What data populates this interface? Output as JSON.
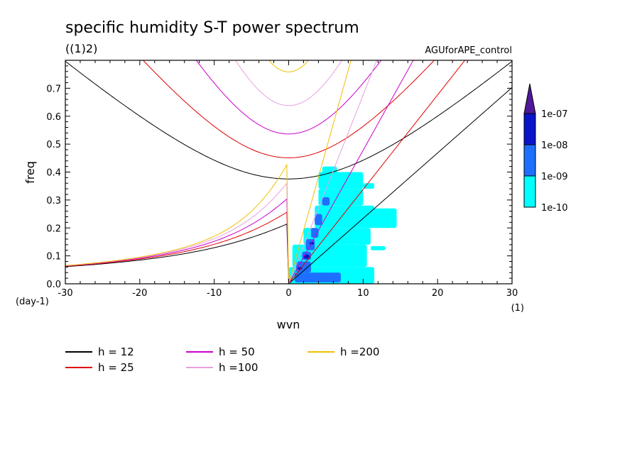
{
  "chart_data": {
    "type": "heatmap",
    "title": "specific humidity S-T power spectrum",
    "subtitle": "((1)2)",
    "run_label": "AGUforAPE_control",
    "xlabel": "wvn",
    "ylabel": "freq",
    "x_unit": "(1)",
    "y_unit": "(day-1)",
    "xlim": [
      -30,
      30
    ],
    "ylim": [
      0,
      0.8
    ],
    "xticks": [
      "-30",
      "-20",
      "-10",
      "0",
      "10",
      "20",
      "30"
    ],
    "yticks": [
      "0.0",
      "0.1",
      "0.2",
      "0.3",
      "0.4",
      "0.5",
      "0.6",
      "0.7"
    ],
    "colorbar": {
      "labels": [
        "1e-10",
        "1e-09",
        "1e-08",
        "1e-07"
      ],
      "colors": [
        "#00ffff",
        "#1e6fff",
        "#0a14c8",
        "#50189a"
      ]
    },
    "dispersion_curves": {
      "series": [
        {
          "name": "h = 12",
          "h": 12,
          "color": "#000000"
        },
        {
          "name": "h = 25",
          "h": 25,
          "color": "#e00000"
        },
        {
          "name": "h = 50",
          "h": 50,
          "color": "#cc00cc"
        },
        {
          "name": "h =100",
          "h": 100,
          "color": "#e8a0e0"
        },
        {
          "name": "h =200",
          "h": 200,
          "color": "#f0c000"
        }
      ]
    },
    "spectrum_patches": [
      {
        "level": 0,
        "x": [
          0,
          11.5
        ],
        "y": [
          0,
          0.06
        ]
      },
      {
        "level": 0,
        "x": [
          0.5,
          10.5
        ],
        "y": [
          0.06,
          0.14
        ]
      },
      {
        "level": 0,
        "x": [
          2,
          11
        ],
        "y": [
          0.14,
          0.2
        ]
      },
      {
        "level": 0,
        "x": [
          3.5,
          11.5
        ],
        "y": [
          0.2,
          0.28
        ]
      },
      {
        "level": 0,
        "x": [
          4,
          10
        ],
        "y": [
          0.28,
          0.34
        ]
      },
      {
        "level": 0,
        "x": [
          4,
          10
        ],
        "y": [
          0.34,
          0.4
        ]
      },
      {
        "level": 0,
        "x": [
          11,
          14.5
        ],
        "y": [
          0.2,
          0.27
        ]
      },
      {
        "level": 0,
        "x": [
          10,
          11.5
        ],
        "y": [
          0.34,
          0.36
        ]
      },
      {
        "level": 0,
        "x": [
          11,
          13
        ],
        "y": [
          0.12,
          0.135
        ]
      },
      {
        "level": 0,
        "x": [
          4.5,
          6.5
        ],
        "y": [
          0.39,
          0.42
        ]
      },
      {
        "level": 1,
        "x": [
          0.8,
          7
        ],
        "y": [
          0.005,
          0.04
        ]
      },
      {
        "level": 1,
        "x": [
          1,
          3
        ],
        "y": [
          0.04,
          0.08
        ]
      },
      {
        "level": 1,
        "x": [
          1.8,
          3
        ],
        "y": [
          0.085,
          0.115
        ]
      },
      {
        "level": 1,
        "x": [
          2.3,
          3.5
        ],
        "y": [
          0.12,
          0.16
        ]
      },
      {
        "level": 1,
        "x": [
          3,
          4
        ],
        "y": [
          0.165,
          0.2
        ]
      },
      {
        "level": 1,
        "x": [
          3.5,
          4.5
        ],
        "y": [
          0.21,
          0.25
        ]
      },
      {
        "level": 1,
        "x": [
          4.5,
          5.5
        ],
        "y": [
          0.28,
          0.31
        ]
      },
      {
        "level": 2,
        "x": [
          2,
          2.8
        ],
        "y": [
          0.09,
          0.105
        ]
      },
      {
        "level": 2,
        "x": [
          1.2,
          1.8
        ],
        "y": [
          0.05,
          0.06
        ]
      },
      {
        "level": 2,
        "x": [
          2.8,
          3.4
        ],
        "y": [
          0.14,
          0.15
        ]
      }
    ]
  },
  "legend": {
    "entries": [
      "h = 12",
      "h = 25",
      "h = 50",
      "h =100",
      "h =200"
    ]
  }
}
